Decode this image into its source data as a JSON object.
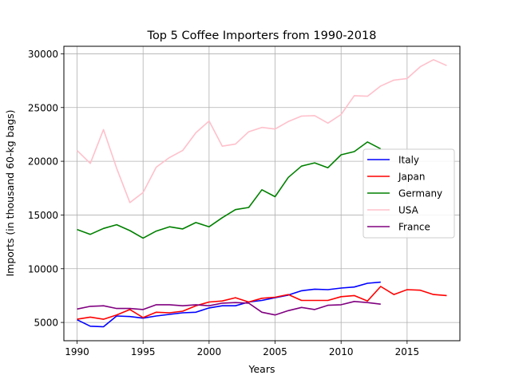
{
  "chart_data": {
    "type": "line",
    "title": "Top 5 Coffee Importers from 1990-2018",
    "xlabel": "Years",
    "ylabel": "Imports (in thousand 60-kg bags)",
    "xlim": [
      1989,
      2019
    ],
    "ylim": [
      3300,
      30700
    ],
    "xticks": [
      1990,
      1995,
      2000,
      2005,
      2010,
      2015
    ],
    "yticks": [
      5000,
      10000,
      15000,
      20000,
      25000,
      30000
    ],
    "grid": true,
    "legend_position": "center-right",
    "series": [
      {
        "name": "Italy",
        "color": "#0000ff",
        "x": [
          1990,
          1991,
          1992,
          1993,
          1994,
          1995,
          1996,
          1997,
          1998,
          1999,
          2000,
          2001,
          2002,
          2003,
          2004,
          2005,
          2006,
          2007,
          2008,
          2009,
          2010,
          2011,
          2012,
          2013
        ],
        "values": [
          5250,
          4650,
          4600,
          5600,
          5550,
          5400,
          5600,
          5750,
          5900,
          5950,
          6350,
          6550,
          6550,
          6900,
          7050,
          7300,
          7550,
          7950,
          8100,
          8050,
          8200,
          8300,
          8650,
          8750
        ]
      },
      {
        "name": "Japan",
        "color": "#ff0000",
        "x": [
          1990,
          1991,
          1992,
          1993,
          1994,
          1995,
          1996,
          1997,
          1998,
          1999,
          2000,
          2001,
          2002,
          2003,
          2004,
          2005,
          2006,
          2007,
          2008,
          2009,
          2010,
          2011,
          2012,
          2013,
          2014,
          2015,
          2016,
          2017,
          2018
        ],
        "values": [
          5300,
          5500,
          5300,
          5700,
          6200,
          5450,
          5950,
          5900,
          6050,
          6550,
          6900,
          7000,
          7300,
          6900,
          7250,
          7350,
          7600,
          7050,
          7050,
          7050,
          7400,
          7500,
          7000,
          8350,
          7600,
          8050,
          8000,
          7600,
          7500
        ]
      },
      {
        "name": "Germany",
        "color": "#008000",
        "x": [
          1990,
          1991,
          1992,
          1993,
          1994,
          1995,
          1996,
          1997,
          1998,
          1999,
          2000,
          2001,
          2002,
          2003,
          2004,
          2005,
          2006,
          2007,
          2008,
          2009,
          2010,
          2011,
          2012,
          2013
        ],
        "values": [
          13650,
          13200,
          13750,
          14100,
          13550,
          12850,
          13500,
          13900,
          13700,
          14300,
          13900,
          14750,
          15500,
          15700,
          17350,
          16700,
          18500,
          19550,
          19850,
          19400,
          20600,
          20900,
          21800,
          21150
        ]
      },
      {
        "name": "USA",
        "color": "#ffc0cb",
        "x": [
          1990,
          1991,
          1992,
          1993,
          1994,
          1995,
          1996,
          1997,
          1998,
          1999,
          2000,
          2001,
          2002,
          2003,
          2004,
          2005,
          2006,
          2007,
          2008,
          2009,
          2010,
          2011,
          2012,
          2013,
          2014,
          2015,
          2016,
          2017,
          2018
        ],
        "values": [
          21000,
          19800,
          22950,
          19350,
          16150,
          17100,
          19450,
          20350,
          21000,
          22650,
          23750,
          21400,
          21600,
          22750,
          23150,
          23000,
          23700,
          24200,
          24250,
          23550,
          24350,
          26100,
          26050,
          27000,
          27550,
          27700,
          28800,
          29450,
          28900
        ]
      },
      {
        "name": "France",
        "color": "#800080",
        "x": [
          1990,
          1991,
          1992,
          1993,
          1994,
          1995,
          1996,
          1997,
          1998,
          1999,
          2000,
          2001,
          2002,
          2003,
          2004,
          2005,
          2006,
          2007,
          2008,
          2009,
          2010,
          2011,
          2012,
          2013
        ],
        "values": [
          6250,
          6500,
          6550,
          6300,
          6300,
          6200,
          6650,
          6650,
          6550,
          6650,
          6550,
          6800,
          6850,
          6800,
          5950,
          5700,
          6100,
          6400,
          6200,
          6600,
          6650,
          6950,
          6850,
          6700
        ]
      }
    ]
  }
}
